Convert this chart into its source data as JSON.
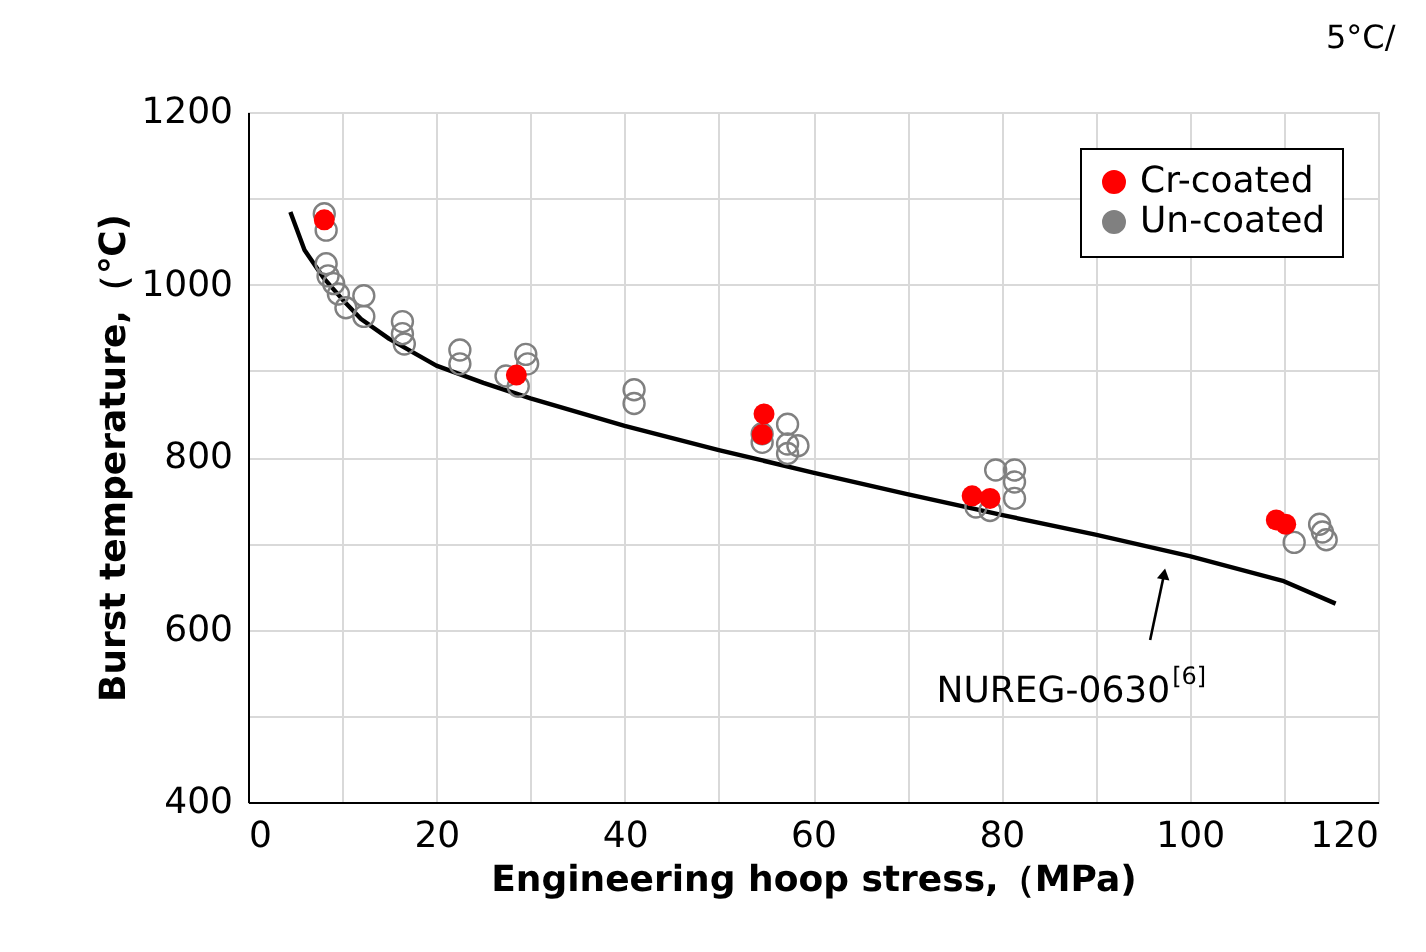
{
  "chart_data": {
    "type": "scatter",
    "xlabel": "Engineering hoop stress,（MPa)",
    "ylabel": "Burst temperature,（℃)",
    "xlim": [
      0,
      120
    ],
    "ylim": [
      400,
      1200
    ],
    "xticks": [
      0,
      {
        "value": 10,
        "label": null
      },
      20,
      {
        "value": 30,
        "label": null
      },
      40,
      {
        "value": 50,
        "label": null
      },
      60,
      {
        "value": 70,
        "label": null
      },
      80,
      {
        "value": 90,
        "label": null
      },
      100,
      {
        "value": 110,
        "label": null
      },
      120
    ],
    "yticks": [
      400,
      {
        "value": 500,
        "label": null
      },
      600,
      {
        "value": 700,
        "label": null
      },
      800,
      {
        "value": 900,
        "label": null
      },
      1000,
      {
        "value": 1100,
        "label": null
      },
      1200
    ],
    "grid": true,
    "legend": "top right",
    "series": [
      {
        "name": "Cr-coated",
        "color": "#ff0000",
        "marker": "circle",
        "x": [
          8.1,
          28.5,
          54.8,
          54.6,
          76.9,
          78.8,
          109.2,
          110.2
        ],
        "values": [
          1075,
          895,
          850,
          826,
          755,
          752,
          727,
          722
        ]
      },
      {
        "name": "Un-coated",
        "color": "#808080",
        "marker": "circle",
        "x": [
          8.1,
          8.3,
          8.3,
          8.5,
          9.1,
          9.6,
          10.4,
          12.3,
          12.3,
          16.4,
          16.4,
          16.6,
          22.5,
          22.5,
          27.4,
          28.7,
          29.5,
          29.7,
          41.0,
          41.0,
          54.6,
          54.6,
          57.3,
          57.3,
          57.3,
          58.4,
          79.4,
          81.4,
          81.4,
          81.4,
          77.3,
          78.8,
          111.1,
          113.8,
          114.1,
          114.5
        ],
        "values": [
          1082,
          1063,
          1024,
          1010,
          1001,
          989,
          973,
          987,
          963,
          957,
          943,
          931,
          924,
          908,
          894,
          882,
          919,
          908,
          878,
          862,
          827,
          817,
          838,
          815,
          804,
          813,
          785,
          785,
          771,
          752,
          742,
          738,
          701,
          722,
          713,
          704
        ]
      },
      {
        "type": "line",
        "color": "#000000",
        "marker": "none",
        "x": [
          4.5,
          6,
          8,
          10,
          12,
          15,
          20,
          25,
          30,
          40,
          50,
          60,
          70,
          80,
          90,
          100,
          110,
          115.5
        ],
        "values": [
          1084,
          1040,
          1008,
          983,
          960,
          937,
          906,
          886,
          868,
          836,
          808,
          782,
          757,
          733,
          710,
          685,
          656,
          630
        ]
      }
    ],
    "annotations": [
      {
        "text": "NUREG-0630$^{[6]}$",
        "x": 97.5,
        "y": 683
      },
      "5°C/"
    ]
  }
}
